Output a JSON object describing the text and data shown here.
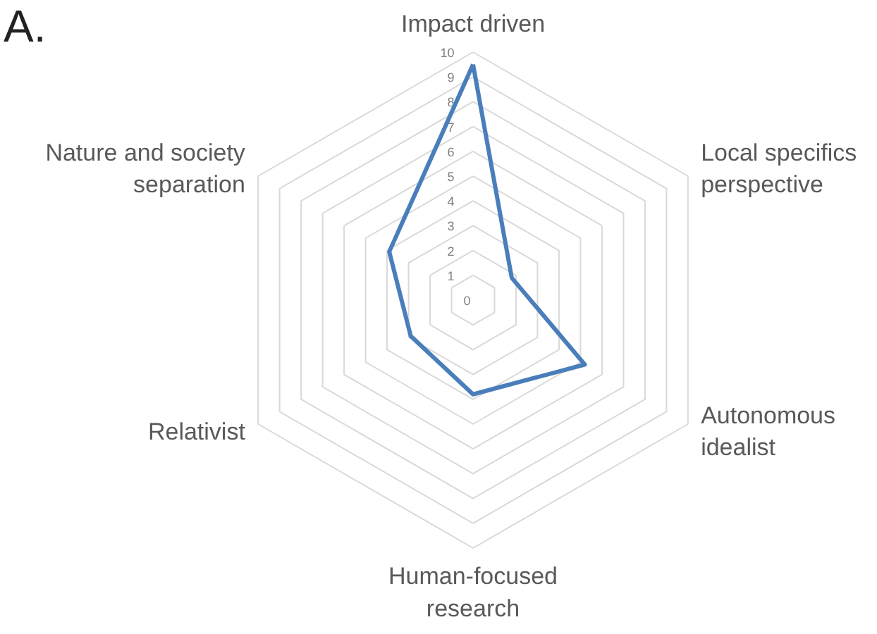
{
  "chart_data": {
    "type": "radar",
    "title": "A.",
    "categories": [
      "Impact driven",
      "Local specifics perspective",
      "Autonomous idealist",
      "Human-focused research",
      "Relativist",
      "Nature and society separation"
    ],
    "series": [
      {
        "color": "#4a7ebb",
        "values": [
          9.5,
          1.8,
          5.2,
          3.8,
          2.9,
          3.9
        ]
      }
    ],
    "ylim": [
      0,
      10
    ],
    "yticks": [
      0,
      1,
      2,
      3,
      4,
      5,
      6,
      7,
      8,
      9,
      10
    ],
    "grid": true
  }
}
